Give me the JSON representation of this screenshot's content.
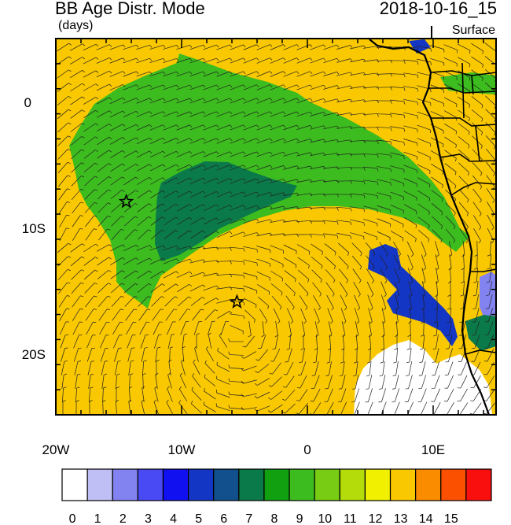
{
  "title": "BB Age Distr. Mode",
  "units": "(days)",
  "timestamp": "2018-10-16_15",
  "level": "Surface",
  "map": {
    "lon_range": [
      -20,
      15
    ],
    "lat_range": [
      -25,
      5
    ],
    "x_ticks": [
      {
        "value": -20,
        "label": "20W"
      },
      {
        "value": -10,
        "label": "10W"
      },
      {
        "value": 0,
        "label": "0"
      },
      {
        "value": 10,
        "label": "10E"
      }
    ],
    "y_ticks": [
      {
        "value": 0,
        "label": "0"
      },
      {
        "value": -10,
        "label": "10S"
      },
      {
        "value": -20,
        "label": "20S"
      }
    ],
    "markers": [
      {
        "name": "star-marker-west",
        "lon": -14.4,
        "lat": -8.0
      },
      {
        "name": "star-marker-south",
        "lon": -5.6,
        "lat": -16.0
      }
    ]
  },
  "colorbar": {
    "labels": [
      "0",
      "1",
      "2",
      "3",
      "4",
      "5",
      "6",
      "7",
      "8",
      "9",
      "10",
      "11",
      "12",
      "13",
      "14",
      "15"
    ],
    "colors": [
      "#ffffff",
      "#bfbff5",
      "#8282f0",
      "#4a4af5",
      "#1010f0",
      "#1436c4",
      "#11508c",
      "#0b7a4a",
      "#10a010",
      "#3cbc1e",
      "#78cc14",
      "#b4dc0a",
      "#f0f000",
      "#fac800",
      "#fa8c00",
      "#fa5000",
      "#fa0f0f"
    ]
  },
  "fields": {
    "background_color": "#fac800",
    "green_color": "#3cbc1e",
    "dark_green_color": "#0b7a4a",
    "blue_color": "#1436c4",
    "light_blue_color": "#8282f0",
    "white_color": "#ffffff"
  }
}
